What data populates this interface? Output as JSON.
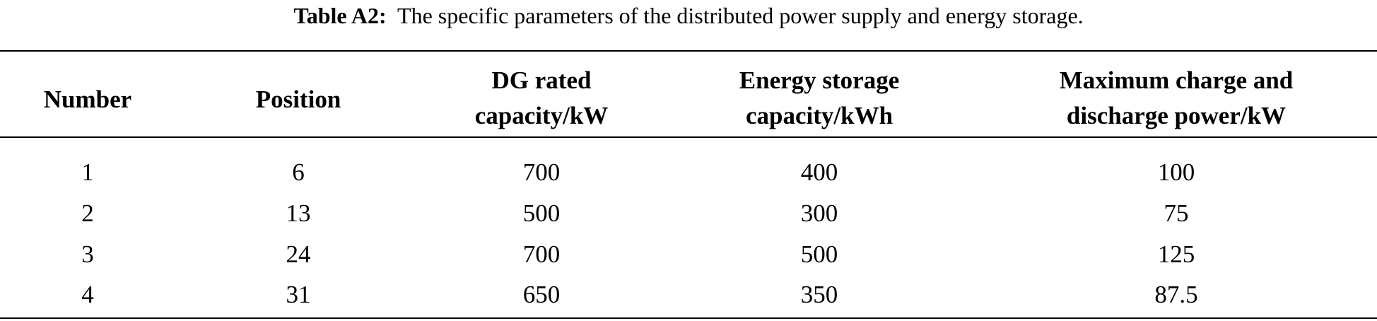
{
  "caption": {
    "label": "Table A2:",
    "text": "The specific parameters of the distributed power supply and energy storage."
  },
  "table": {
    "headers": [
      [
        "Number"
      ],
      [
        "Position"
      ],
      [
        "DG rated",
        "capacity/kW"
      ],
      [
        "Energy storage",
        "capacity/kWh"
      ],
      [
        "Maximum charge and",
        "discharge power/kW"
      ]
    ],
    "rows": [
      [
        "1",
        "6",
        "700",
        "400",
        "100"
      ],
      [
        "2",
        "13",
        "500",
        "300",
        "75"
      ],
      [
        "3",
        "24",
        "700",
        "500",
        "125"
      ],
      [
        "4",
        "31",
        "650",
        "350",
        "87.5"
      ]
    ]
  }
}
